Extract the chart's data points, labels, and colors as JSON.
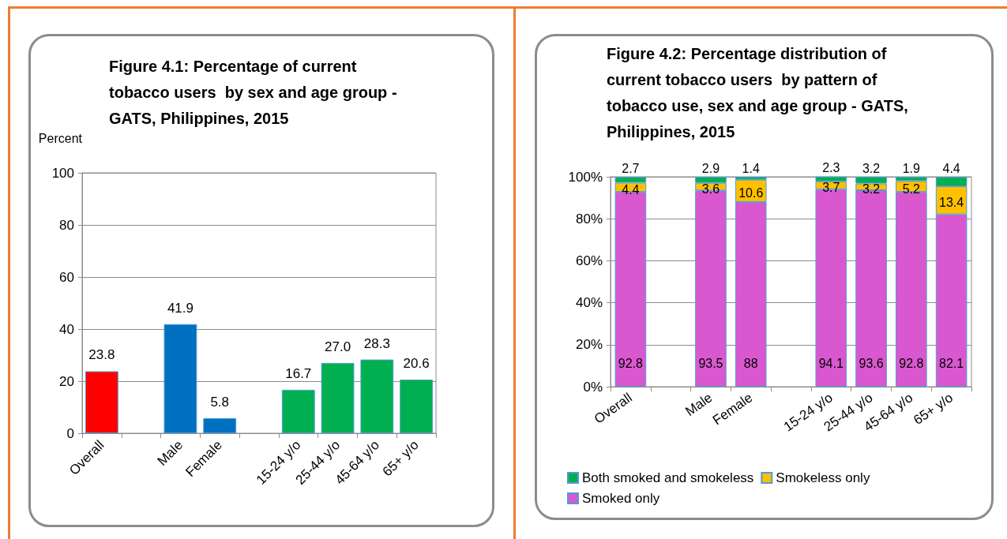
{
  "chart_data": [
    {
      "type": "bar",
      "title": "Figure 4.1: Percentage of current tobacco users  by sex and age group - GATS, Philippines, 2015",
      "ylabel": "Percent",
      "categories": [
        "Overall",
        null,
        "Male",
        "Female",
        null,
        "15-24 y/o",
        "25-44 y/o",
        "45-64 y/o",
        "65+ y/o"
      ],
      "values": [
        23.8,
        null,
        41.9,
        5.8,
        null,
        16.7,
        27.0,
        28.3,
        20.6
      ],
      "colors": [
        "#ff0000",
        null,
        "#0070c0",
        "#0070c0",
        null,
        "#00b050",
        "#00b050",
        "#00b050",
        "#00b050"
      ],
      "value_labels": [
        "23.8",
        null,
        "41.9",
        "5.8",
        null,
        "16.7",
        "27.0",
        "28.3",
        "20.6"
      ],
      "ylim": [
        0,
        100
      ],
      "yticks": [
        0,
        20,
        40,
        60,
        80,
        100
      ],
      "grid": "y",
      "legend": false
    },
    {
      "type": "bar",
      "title": "Figure 4.2: Percentage distribution of current tobacco users  by pattern of tobacco use, sex and age group - GATS, Philippines, 2015",
      "categories": [
        "Overall",
        null,
        "Male",
        "Female",
        null,
        "15-24 y/o",
        "25-44 y/o",
        "45-64 y/o",
        "65+ y/o"
      ],
      "series": [
        {
          "name": "Smoked only",
          "color": "#da58cf",
          "values": [
            92.8,
            null,
            93.5,
            88,
            null,
            94.1,
            93.6,
            92.8,
            82.1
          ]
        },
        {
          "name": "Smokeless only",
          "color": "#ffc000",
          "values": [
            4.4,
            null,
            3.6,
            10.6,
            null,
            3.7,
            3.2,
            5.2,
            13.4
          ]
        },
        {
          "name": "Both smoked and smokeless",
          "color": "#00b050",
          "values": [
            2.7,
            null,
            2.9,
            1.4,
            null,
            2.3,
            3.2,
            1.9,
            4.4
          ]
        }
      ],
      "stacked": true,
      "data_labels": true,
      "ylim": [
        0,
        100
      ],
      "yticks": [
        {
          "value": 0,
          "label": "0%"
        },
        {
          "value": 20,
          "label": "20%"
        },
        {
          "value": 40,
          "label": "40%"
        },
        {
          "value": 60,
          "label": "60%"
        },
        {
          "value": 80,
          "label": "80%"
        },
        {
          "value": 100,
          "label": "100%"
        }
      ],
      "grid": "y",
      "legend": "bottom"
    }
  ]
}
